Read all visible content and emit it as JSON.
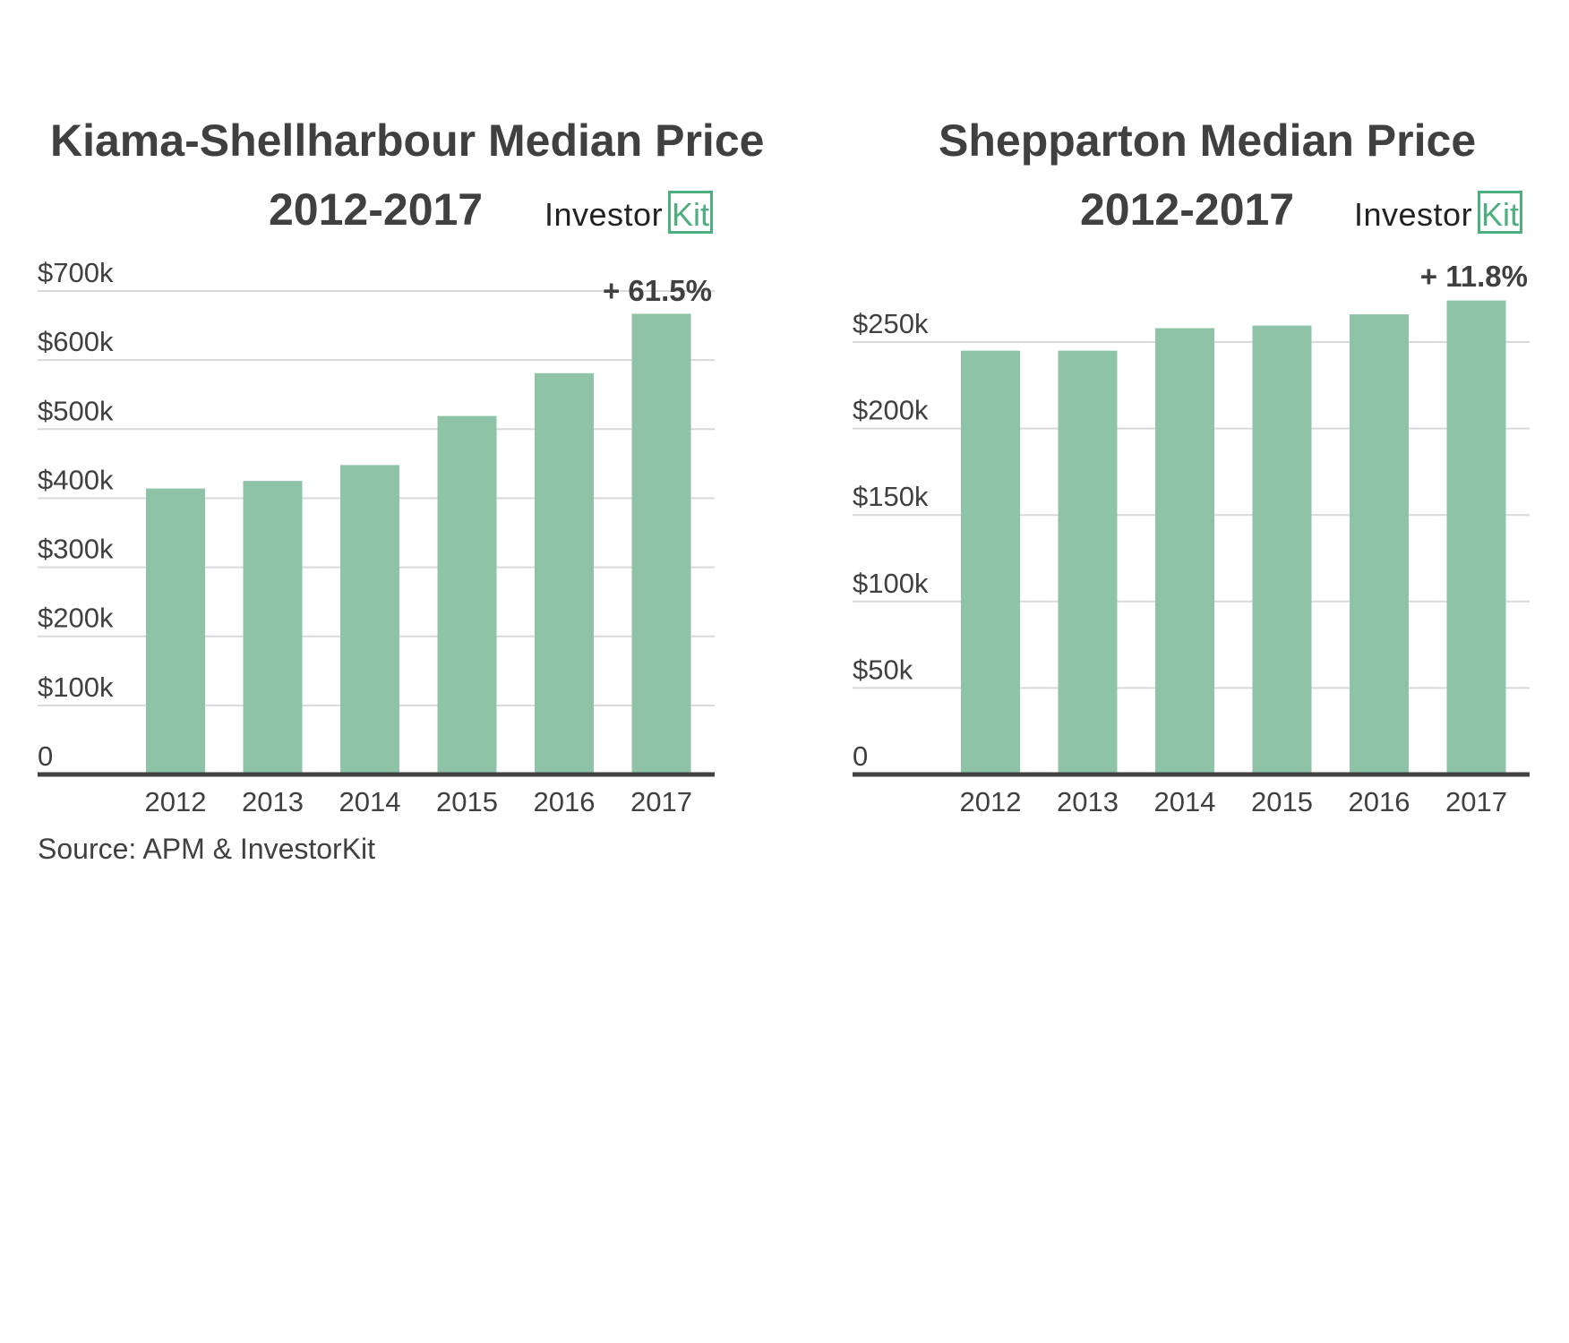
{
  "source": "Source: APM & InvestorKit",
  "logo": {
    "word": "Investor",
    "boxed": "Kit",
    "color": "#4caf7d"
  },
  "colors": {
    "bar": "#8fc3a7",
    "grid": "#d9d9d9",
    "axis": "#404040",
    "text": "#404040"
  },
  "chart_data": [
    {
      "type": "bar",
      "title": "Kiama-Shellharbour Median Price",
      "subtitle": "2012-2017",
      "categories": [
        "2012",
        "2013",
        "2014",
        "2015",
        "2016",
        "2017"
      ],
      "values": [
        414000,
        425000,
        448000,
        519000,
        581000,
        667000
      ],
      "ylim": [
        0,
        700000
      ],
      "yticks": [
        0,
        100000,
        200000,
        300000,
        400000,
        500000,
        600000,
        700000
      ],
      "ytick_labels": [
        "0",
        "$100k",
        "$200k",
        "$300k",
        "$400k",
        "$500k",
        "$600k",
        "$700k"
      ],
      "annotation": "+ 61.5%",
      "grid": true
    },
    {
      "type": "bar",
      "title": "Shepparton Median Price",
      "subtitle": "2012-2017",
      "categories": [
        "2012",
        "2013",
        "2014",
        "2015",
        "2016",
        "2017"
      ],
      "values": [
        245000,
        245000,
        258000,
        259500,
        266000,
        274000
      ],
      "ylim": [
        0,
        250000
      ],
      "yticks": [
        0,
        50000,
        100000,
        150000,
        200000,
        250000
      ],
      "ytick_labels": [
        "0",
        "$50k",
        "$100k",
        "$150k",
        "$200k",
        "$250k"
      ],
      "annotation": "+ 11.8%",
      "grid": true
    }
  ]
}
